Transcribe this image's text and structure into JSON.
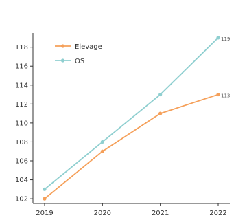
{
  "chart_data": {
    "type": "line",
    "x": [
      2019,
      2020,
      2021,
      2022
    ],
    "x_tick_labels": [
      "2019",
      "2020",
      "2021",
      "2022"
    ],
    "ylim": [
      101.5,
      119.5
    ],
    "y_ticks": [
      102,
      104,
      106,
      108,
      110,
      112,
      114,
      116,
      118
    ],
    "grid": false,
    "legend_position": "top-left",
    "series": [
      {
        "name": "Elevage",
        "values": [
          102,
          107,
          111,
          113
        ],
        "color": "#f5a05a",
        "end_label": "113"
      },
      {
        "name": "OS",
        "values": [
          103,
          108,
          113,
          119
        ],
        "color": "#8fcfd0",
        "end_label": "119"
      }
    ]
  }
}
